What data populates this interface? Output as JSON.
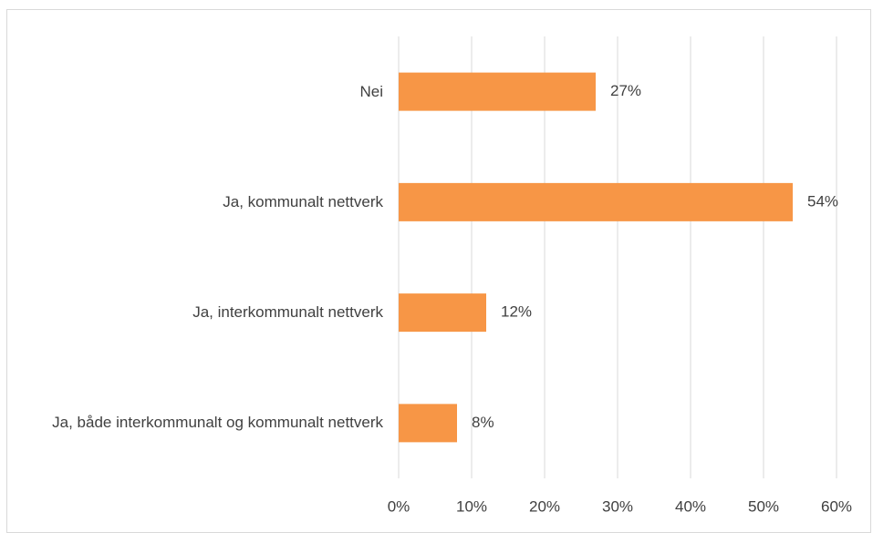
{
  "chart_data": {
    "type": "bar",
    "orientation": "horizontal",
    "categories": [
      "Nei",
      "Ja, kommunalt nettverk",
      "Ja, interkommunalt nettverk",
      "Ja, både interkommunalt og kommunalt nettverk"
    ],
    "values": [
      27,
      54,
      12,
      8
    ],
    "value_labels": [
      "27%",
      "54%",
      "12%",
      "8%"
    ],
    "color": "#f79646",
    "xlim": [
      0,
      60
    ],
    "xticks": [
      {
        "value": 0,
        "label": "0%"
      },
      {
        "value": 10,
        "label": "10%"
      },
      {
        "value": 20,
        "label": "20%"
      },
      {
        "value": 30,
        "label": "30%"
      },
      {
        "value": 40,
        "label": "40%"
      },
      {
        "value": 50,
        "label": "50%"
      },
      {
        "value": 60,
        "label": "60%"
      }
    ],
    "grid": true
  }
}
